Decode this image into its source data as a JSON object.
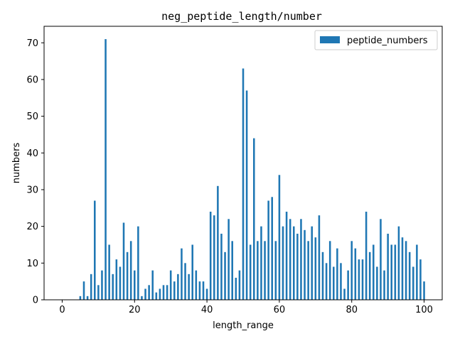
{
  "chart_data": {
    "type": "bar",
    "title": "neg_peptide_length/number",
    "xlabel": "length_range",
    "ylabel": "numbers",
    "xlim": [
      -5,
      105
    ],
    "ylim": [
      0,
      74.5
    ],
    "xticks": [
      0,
      20,
      40,
      60,
      80,
      100
    ],
    "yticks": [
      0,
      10,
      20,
      30,
      40,
      50,
      60,
      70
    ],
    "legend_position": "top-right",
    "series": [
      {
        "name": "peptide_numbers",
        "color": "#1f77b4",
        "x": [
          5,
          6,
          7,
          8,
          9,
          10,
          11,
          12,
          13,
          14,
          15,
          16,
          17,
          18,
          19,
          20,
          21,
          22,
          23,
          24,
          25,
          26,
          27,
          28,
          29,
          30,
          31,
          32,
          33,
          34,
          35,
          36,
          37,
          38,
          39,
          40,
          41,
          42,
          43,
          44,
          45,
          46,
          47,
          48,
          49,
          50,
          51,
          52,
          53,
          54,
          55,
          56,
          57,
          58,
          59,
          60,
          61,
          62,
          63,
          64,
          65,
          66,
          67,
          68,
          69,
          70,
          71,
          72,
          73,
          74,
          75,
          76,
          77,
          78,
          79,
          80,
          81,
          82,
          83,
          84,
          85,
          86,
          87,
          88,
          89,
          90,
          91,
          92,
          93,
          94,
          95,
          96,
          97,
          98,
          99,
          100
        ],
        "values": [
          1,
          5,
          1,
          7,
          27,
          4,
          8,
          71,
          15,
          7,
          11,
          9,
          21,
          13,
          16,
          8,
          20,
          1,
          3,
          4,
          8,
          2,
          3,
          4,
          4,
          8,
          5,
          7,
          14,
          10,
          7,
          15,
          8,
          5,
          5,
          3,
          24,
          23,
          31,
          18,
          13,
          22,
          16,
          6,
          8,
          63,
          57,
          15,
          44,
          16,
          20,
          16,
          27,
          28,
          16,
          34,
          20,
          24,
          22,
          20,
          18,
          22,
          19,
          16,
          20,
          17,
          23,
          13,
          10,
          16,
          9,
          14,
          10,
          3,
          8,
          16,
          14,
          11,
          11,
          24,
          13,
          15,
          9,
          22,
          8,
          18,
          15,
          15,
          20,
          17,
          16,
          13,
          9,
          15,
          11,
          5
        ]
      }
    ]
  }
}
